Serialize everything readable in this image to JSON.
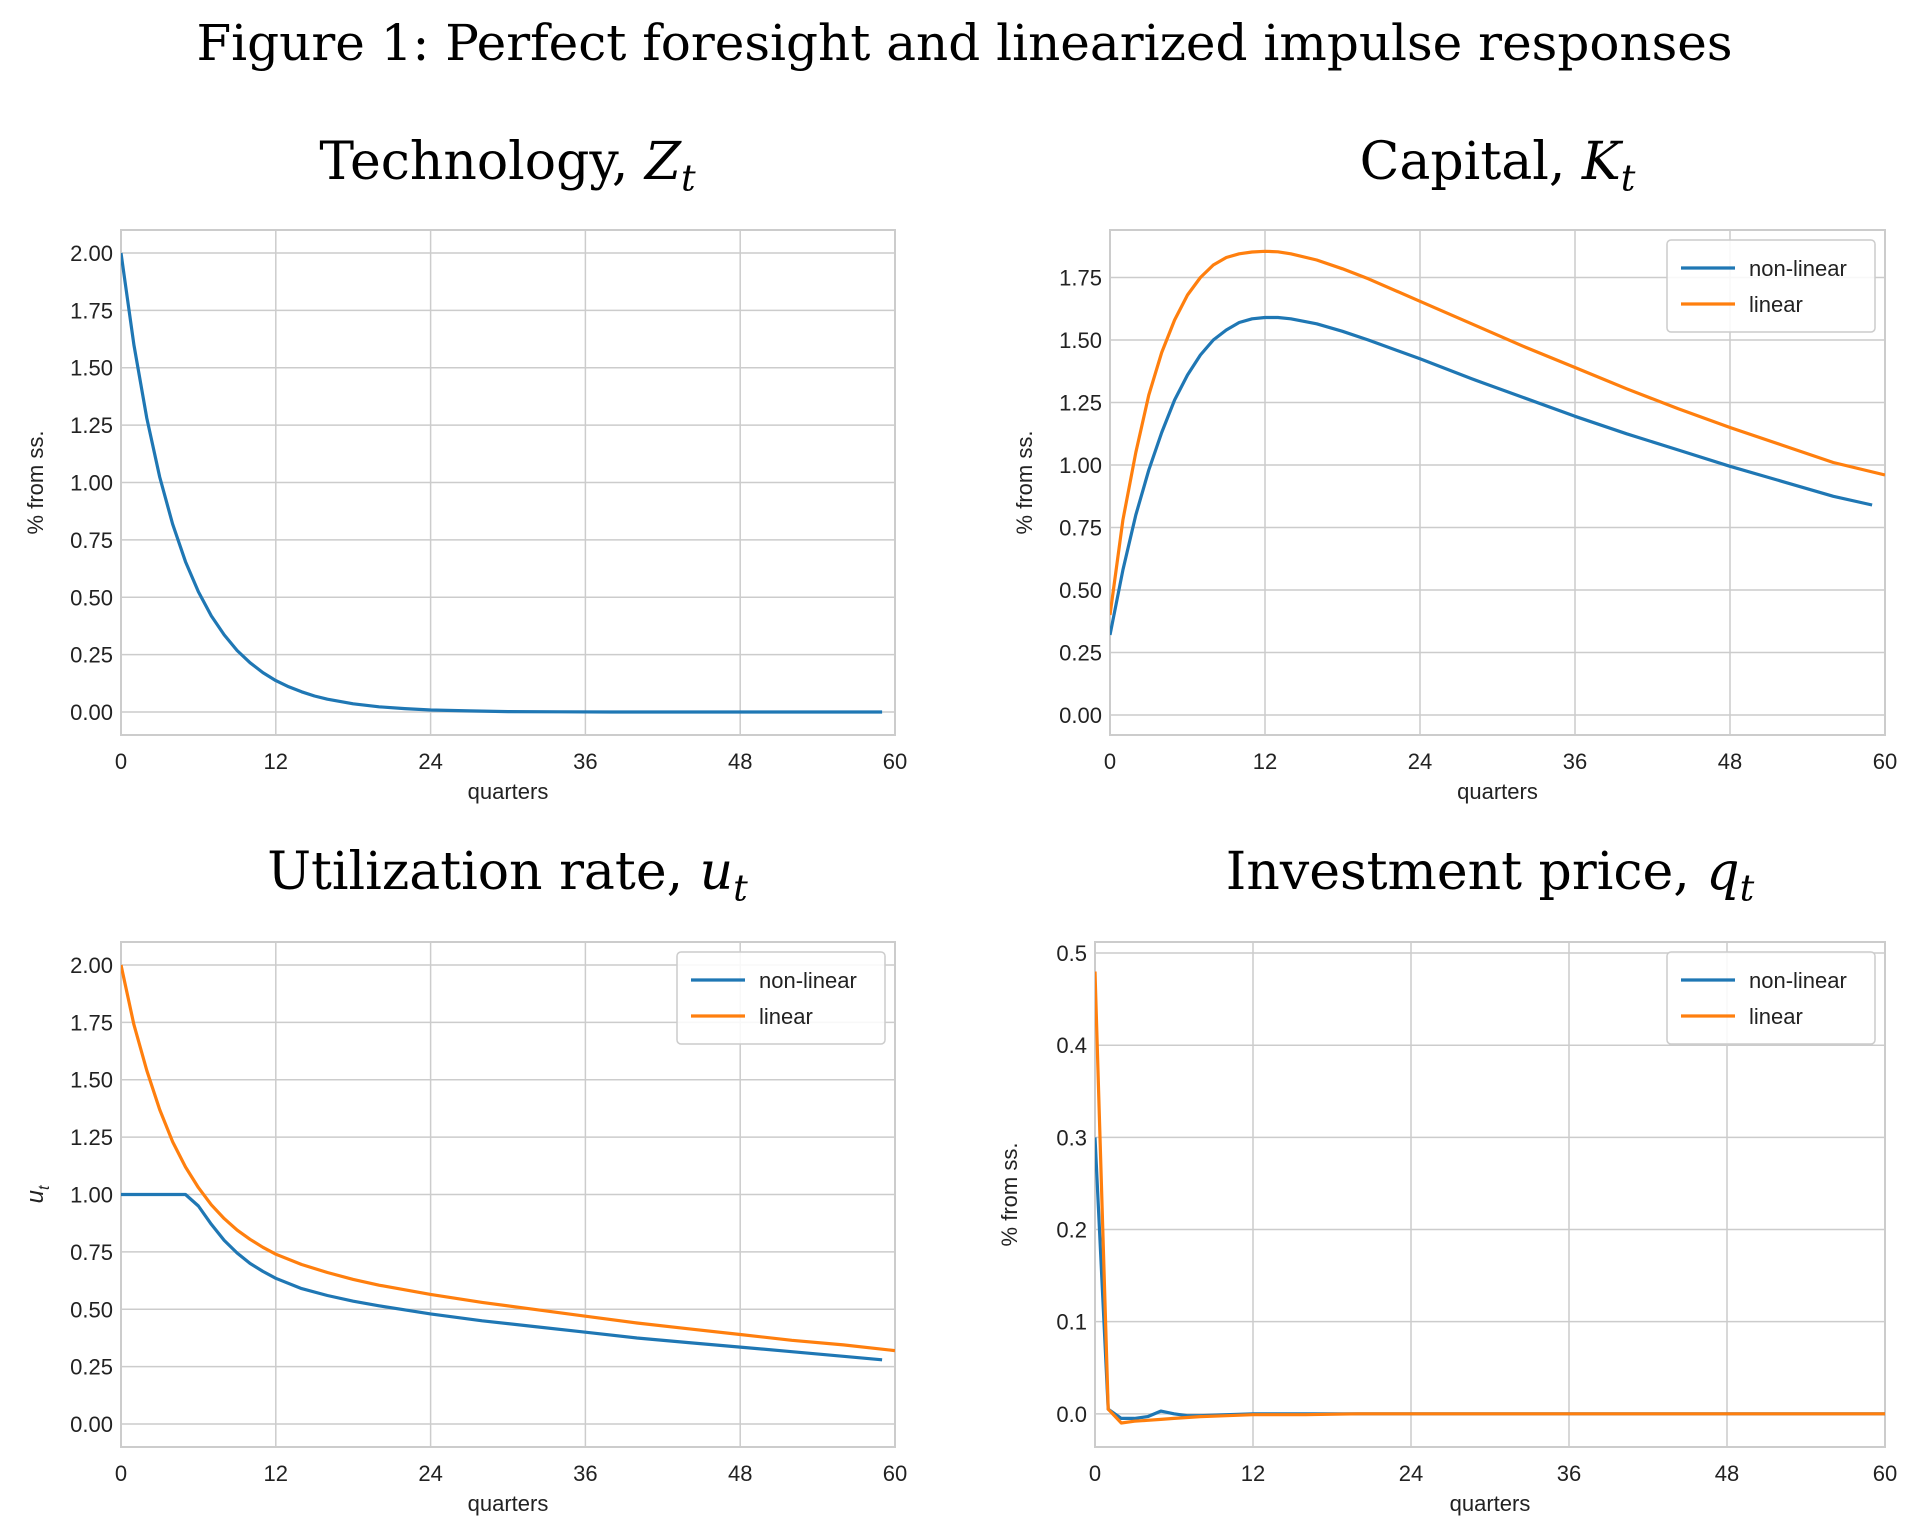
{
  "figure_title": "Figure 1: Perfect foresight and linearized impulse responses",
  "colors": {
    "nonlinear": "#1f77b4",
    "linear": "#ff7f0e",
    "grid": "#cccccc",
    "frame": "#cccccc"
  },
  "chart_data": [
    {
      "type": "line",
      "title_main": "Technology, ",
      "title_var": "Z",
      "title_sub": "t",
      "xlabel": "quarters",
      "ylabel": "% from ss.",
      "xlim": [
        0,
        60
      ],
      "ylim": [
        -0.1,
        2.1
      ],
      "xticks": [
        0,
        12,
        24,
        36,
        48,
        60
      ],
      "yticks": [
        0.0,
        0.25,
        0.5,
        0.75,
        1.0,
        1.25,
        1.5,
        1.75,
        2.0
      ],
      "ytick_labels": [
        "0.00",
        "0.25",
        "0.50",
        "0.75",
        "1.00",
        "1.25",
        "1.50",
        "1.75",
        "2.00"
      ],
      "grid": true,
      "legend": null,
      "series": [
        {
          "color": "#1f77b4",
          "x": [
            0,
            1,
            2,
            3,
            4,
            5,
            6,
            7,
            8,
            9,
            10,
            11,
            12,
            13,
            14,
            15,
            16,
            18,
            20,
            22,
            24,
            27,
            30,
            34,
            38,
            42,
            46,
            50,
            54,
            59
          ],
          "values": [
            2.0,
            1.6,
            1.28,
            1.024,
            0.819,
            0.655,
            0.524,
            0.419,
            0.336,
            0.268,
            0.215,
            0.172,
            0.137,
            0.11,
            0.088,
            0.07,
            0.056,
            0.036,
            0.023,
            0.015,
            0.009,
            0.005,
            0.002,
            0.001,
            0.0,
            0.0,
            0.0,
            0.0,
            0.0,
            0.0
          ]
        }
      ]
    },
    {
      "type": "line",
      "title_main": "Capital, ",
      "title_var": "K",
      "title_sub": "t",
      "xlabel": "quarters",
      "ylabel": "% from ss.",
      "xlim": [
        0,
        60
      ],
      "ylim": [
        -0.08,
        1.94
      ],
      "xticks": [
        0,
        12,
        24,
        36,
        48,
        60
      ],
      "yticks": [
        0.0,
        0.25,
        0.5,
        0.75,
        1.0,
        1.25,
        1.5,
        1.75
      ],
      "ytick_labels": [
        "0.00",
        "0.25",
        "0.50",
        "0.75",
        "1.00",
        "1.25",
        "1.50",
        "1.75"
      ],
      "grid": true,
      "legend": "top-right",
      "series": [
        {
          "name": "non-linear",
          "color": "#1f77b4",
          "x": [
            0,
            1,
            2,
            3,
            4,
            5,
            6,
            7,
            8,
            9,
            10,
            11,
            12,
            13,
            14,
            16,
            18,
            20,
            24,
            28,
            32,
            36,
            40,
            44,
            48,
            52,
            56,
            59
          ],
          "values": [
            0.32,
            0.58,
            0.8,
            0.98,
            1.13,
            1.26,
            1.36,
            1.44,
            1.5,
            1.54,
            1.57,
            1.585,
            1.59,
            1.59,
            1.585,
            1.565,
            1.535,
            1.5,
            1.425,
            1.345,
            1.27,
            1.195,
            1.125,
            1.06,
            0.995,
            0.935,
            0.875,
            0.84
          ]
        },
        {
          "name": "linear",
          "color": "#ff7f0e",
          "x": [
            0,
            1,
            2,
            3,
            4,
            5,
            6,
            7,
            8,
            9,
            10,
            11,
            12,
            13,
            14,
            16,
            18,
            20,
            24,
            28,
            32,
            36,
            40,
            44,
            48,
            52,
            56,
            60
          ],
          "values": [
            0.4,
            0.78,
            1.05,
            1.28,
            1.45,
            1.58,
            1.68,
            1.75,
            1.8,
            1.83,
            1.845,
            1.852,
            1.855,
            1.853,
            1.845,
            1.82,
            1.785,
            1.745,
            1.655,
            1.565,
            1.475,
            1.39,
            1.305,
            1.225,
            1.15,
            1.08,
            1.01,
            0.96
          ]
        }
      ]
    },
    {
      "type": "line",
      "title_main": "Utilization rate, ",
      "title_var": "u",
      "title_sub": "t",
      "xlabel": "quarters",
      "ylabel": "u",
      "ylabel_sub": "t",
      "xlim": [
        0,
        60
      ],
      "ylim": [
        -0.1,
        2.1
      ],
      "xticks": [
        0,
        12,
        24,
        36,
        48,
        60
      ],
      "yticks": [
        0.0,
        0.25,
        0.5,
        0.75,
        1.0,
        1.25,
        1.5,
        1.75,
        2.0
      ],
      "ytick_labels": [
        "0.00",
        "0.25",
        "0.50",
        "0.75",
        "1.00",
        "1.25",
        "1.50",
        "1.75",
        "2.00"
      ],
      "grid": true,
      "legend": "top-right",
      "series": [
        {
          "name": "non-linear",
          "color": "#1f77b4",
          "x": [
            0,
            1,
            2,
            3,
            4,
            5,
            6,
            7,
            8,
            9,
            10,
            11,
            12,
            14,
            16,
            18,
            20,
            24,
            28,
            32,
            36,
            40,
            44,
            48,
            52,
            56,
            59
          ],
          "values": [
            1.0,
            1.0,
            1.0,
            1.0,
            1.0,
            1.0,
            0.95,
            0.87,
            0.8,
            0.745,
            0.7,
            0.665,
            0.635,
            0.59,
            0.56,
            0.535,
            0.515,
            0.48,
            0.45,
            0.425,
            0.4,
            0.375,
            0.355,
            0.335,
            0.315,
            0.295,
            0.28
          ]
        },
        {
          "name": "linear",
          "color": "#ff7f0e",
          "x": [
            0,
            1,
            2,
            3,
            4,
            5,
            6,
            7,
            8,
            9,
            10,
            11,
            12,
            14,
            16,
            18,
            20,
            24,
            28,
            32,
            36,
            40,
            44,
            48,
            52,
            56,
            60
          ],
          "values": [
            2.0,
            1.74,
            1.54,
            1.37,
            1.23,
            1.12,
            1.03,
            0.955,
            0.895,
            0.845,
            0.805,
            0.77,
            0.74,
            0.695,
            0.66,
            0.63,
            0.605,
            0.565,
            0.53,
            0.5,
            0.47,
            0.44,
            0.415,
            0.39,
            0.365,
            0.345,
            0.32
          ]
        }
      ]
    },
    {
      "type": "line",
      "title_main": "Investment price, ",
      "title_var": "q",
      "title_sub": "t",
      "xlabel": "quarters",
      "ylabel": "% from ss.",
      "xlim": [
        0,
        60
      ],
      "ylim": [
        -0.036,
        0.512
      ],
      "xticks": [
        0,
        12,
        24,
        36,
        48,
        60
      ],
      "yticks": [
        0.0,
        0.1,
        0.2,
        0.3,
        0.4,
        0.5
      ],
      "ytick_labels": [
        "0.0",
        "0.1",
        "0.2",
        "0.3",
        "0.4",
        "0.5"
      ],
      "grid": true,
      "legend": "top-right",
      "series": [
        {
          "name": "non-linear",
          "color": "#1f77b4",
          "x": [
            0,
            1,
            2,
            3,
            4,
            5,
            6,
            7,
            8,
            10,
            12,
            16,
            20,
            30,
            40,
            50,
            60
          ],
          "values": [
            0.3,
            0.005,
            -0.005,
            -0.005,
            -0.003,
            0.003,
            0.0,
            -0.002,
            -0.002,
            -0.001,
            0.0,
            0.0,
            0.0,
            0.0,
            0.0,
            0.0,
            0.0
          ]
        },
        {
          "name": "linear",
          "color": "#ff7f0e",
          "x": [
            0,
            1,
            2,
            3,
            4,
            5,
            6,
            7,
            8,
            10,
            12,
            16,
            20,
            30,
            40,
            50,
            60
          ],
          "values": [
            0.48,
            0.005,
            -0.01,
            -0.008,
            -0.007,
            -0.006,
            -0.005,
            -0.004,
            -0.003,
            -0.002,
            -0.001,
            -0.001,
            0.0,
            0.0,
            0.0,
            0.0,
            0.0
          ]
        }
      ]
    }
  ]
}
